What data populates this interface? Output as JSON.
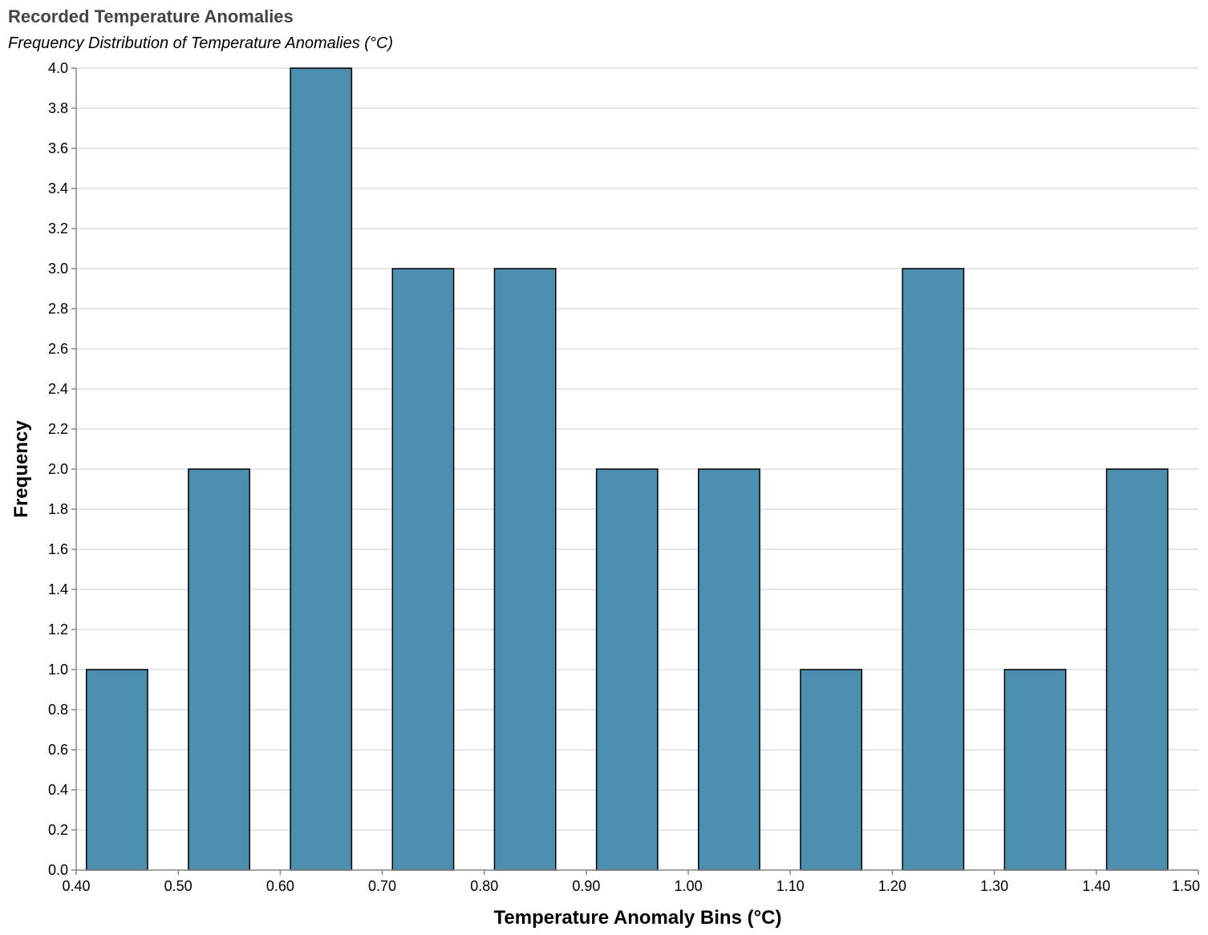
{
  "chart_data": {
    "type": "bar",
    "title": "Recorded Temperature Anomalies",
    "subtitle": "Frequency Distribution of Temperature Anomalies (°C)",
    "xlabel": "Temperature Anomaly Bins (°C)",
    "ylabel": "Frequency",
    "xlim": [
      0.4,
      1.5
    ],
    "ylim": [
      0,
      4
    ],
    "x_ticks": [
      "0.40",
      "0.50",
      "0.60",
      "0.70",
      "0.80",
      "0.90",
      "1.00",
      "1.10",
      "1.20",
      "1.30",
      "1.40",
      "1.50"
    ],
    "y_ticks": [
      "0.0",
      "0.2",
      "0.4",
      "0.6",
      "0.8",
      "1.0",
      "1.2",
      "1.4",
      "1.6",
      "1.8",
      "2.0",
      "2.2",
      "2.4",
      "2.6",
      "2.8",
      "3.0",
      "3.2",
      "3.4",
      "3.6",
      "3.8",
      "4.0"
    ],
    "bins": [
      {
        "start": 0.41,
        "end": 0.47,
        "count": 1
      },
      {
        "start": 0.51,
        "end": 0.57,
        "count": 2
      },
      {
        "start": 0.61,
        "end": 0.67,
        "count": 4
      },
      {
        "start": 0.71,
        "end": 0.77,
        "count": 3
      },
      {
        "start": 0.81,
        "end": 0.87,
        "count": 3
      },
      {
        "start": 0.91,
        "end": 0.97,
        "count": 2
      },
      {
        "start": 1.01,
        "end": 1.07,
        "count": 2
      },
      {
        "start": 1.11,
        "end": 1.17,
        "count": 1
      },
      {
        "start": 1.21,
        "end": 1.27,
        "count": 3
      },
      {
        "start": 1.31,
        "end": 1.37,
        "count": 1
      },
      {
        "start": 1.41,
        "end": 1.47,
        "count": 2
      }
    ],
    "bar_color": "#4c8eb0",
    "bar_stroke": "#000000",
    "grid": true,
    "legend": "none"
  }
}
